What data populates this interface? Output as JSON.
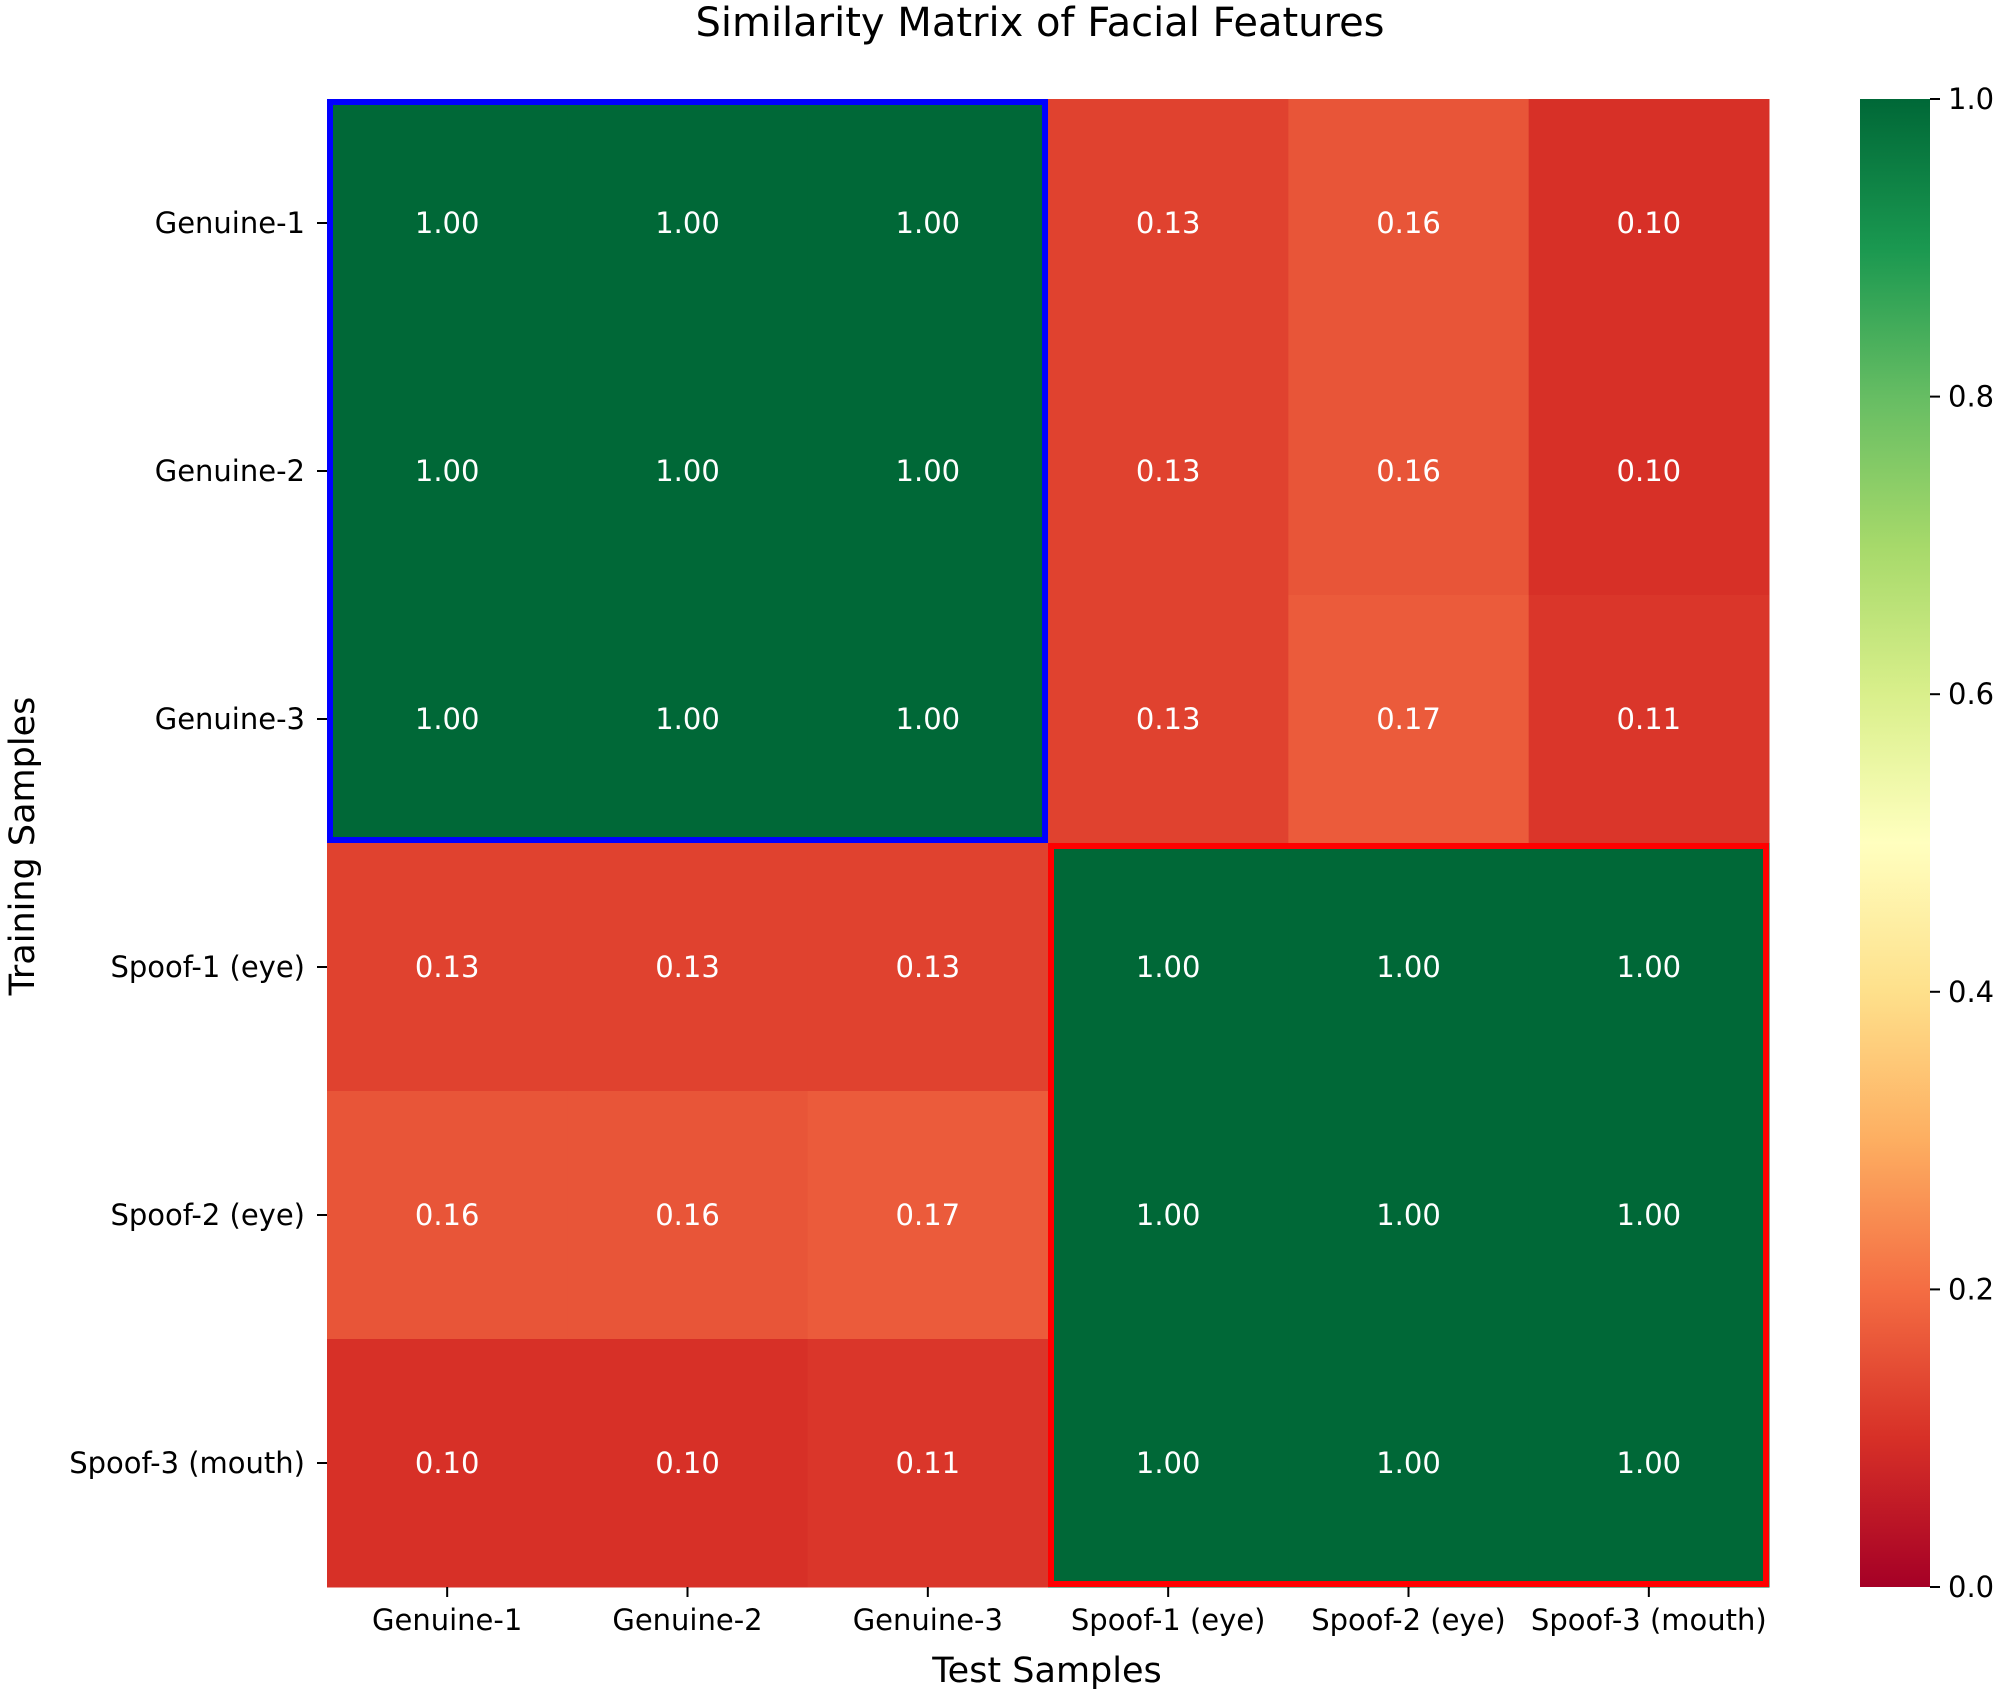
{
  "chart_data": {
    "type": "heatmap",
    "title": "Similarity Matrix of Facial Features",
    "xlabel": "Test Samples",
    "ylabel": "Training Samples",
    "x_categories": [
      "Genuine-1",
      "Genuine-2",
      "Genuine-3",
      "Spoof-1 (eye)",
      "Spoof-2 (eye)",
      "Spoof-3 (mouth)"
    ],
    "y_categories": [
      "Genuine-1",
      "Genuine-2",
      "Genuine-3",
      "Spoof-1 (eye)",
      "Spoof-2 (eye)",
      "Spoof-3 (mouth)"
    ],
    "values": [
      [
        1.0,
        1.0,
        1.0,
        0.13,
        0.16,
        0.1
      ],
      [
        1.0,
        1.0,
        1.0,
        0.13,
        0.16,
        0.1
      ],
      [
        1.0,
        1.0,
        1.0,
        0.13,
        0.17,
        0.11
      ],
      [
        0.13,
        0.13,
        0.13,
        1.0,
        1.0,
        1.0
      ],
      [
        0.16,
        0.16,
        0.17,
        1.0,
        1.0,
        1.0
      ],
      [
        0.1,
        0.1,
        0.11,
        1.0,
        1.0,
        1.0
      ]
    ],
    "value_format": "2 decimals",
    "colormap": "RdYlGn",
    "vmin": 0.0,
    "vmax": 1.0,
    "colorbar_ticks": [
      "0.0",
      "0.2",
      "0.4",
      "0.6",
      "0.8",
      "1.0"
    ],
    "colorbar_tick_values": [
      0.0,
      0.2,
      0.4,
      0.6,
      0.8,
      1.0
    ],
    "highlight_boxes": [
      {
        "name": "genuine-block",
        "rows": [
          0,
          2
        ],
        "cols": [
          0,
          2
        ],
        "color": "#0000ff"
      },
      {
        "name": "spoof-block",
        "rows": [
          3,
          5
        ],
        "cols": [
          3,
          5
        ],
        "color": "#ff0000"
      }
    ],
    "annotation_text_color": "#ffffff"
  }
}
